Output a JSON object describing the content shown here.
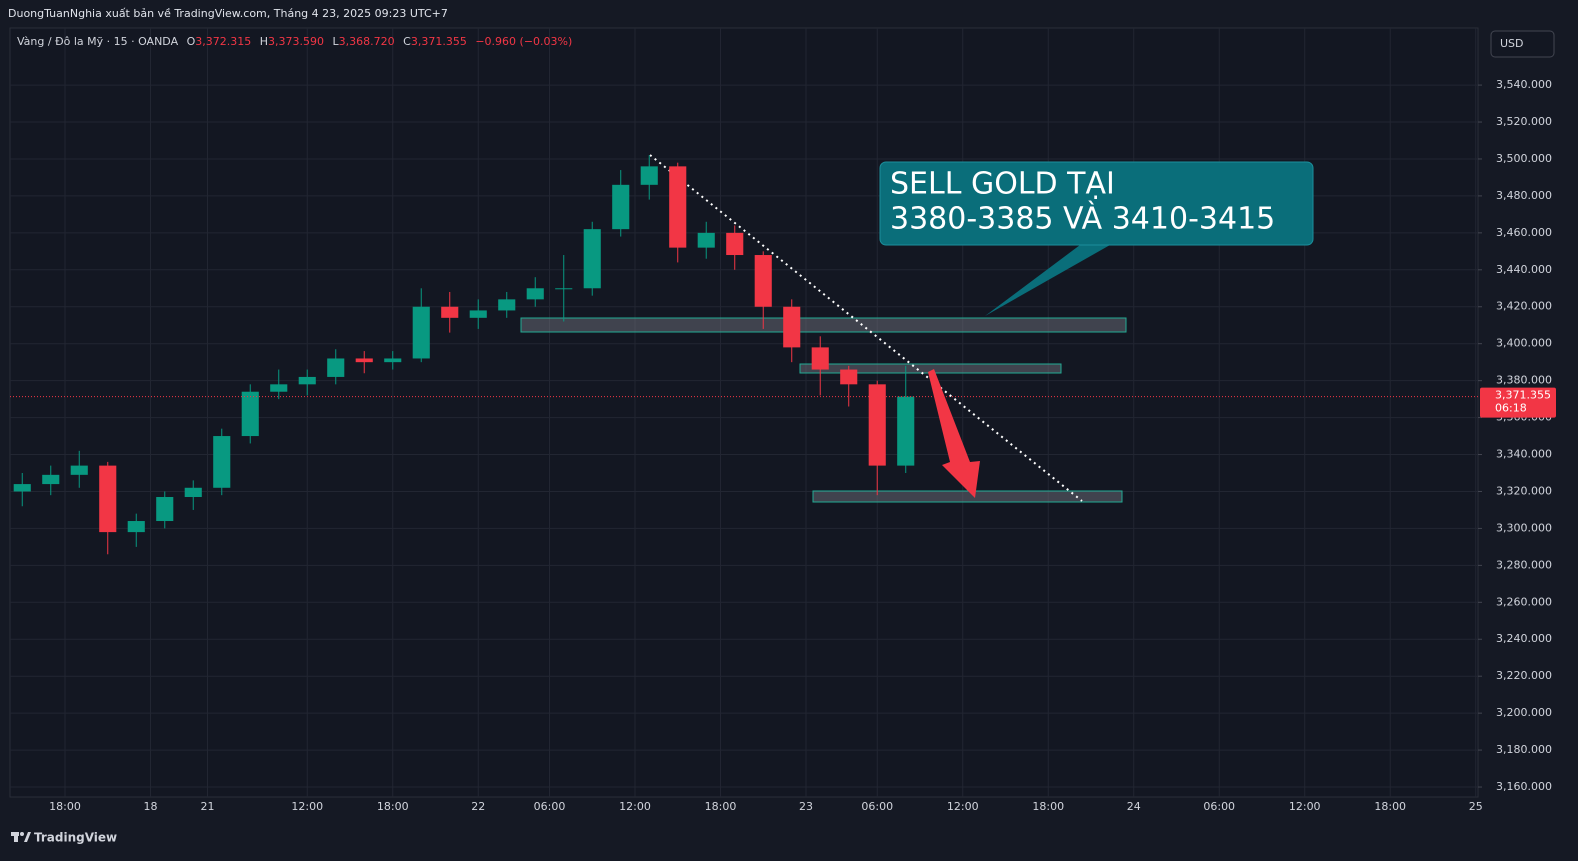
{
  "chart_data": {
    "type": "candlestick",
    "publisher": "DuongTuanNghia xuất bản về TradingView.com, Tháng 4 23, 2025 09:23 UTC+7",
    "legend": {
      "symbol": "Vàng / Đô la Mỹ · 15 · OANDA",
      "o_label": "O",
      "open": "3,372.315",
      "h_label": "H",
      "high": "3,373.590",
      "l_label": "L",
      "low": "3,368.720",
      "c_label": "C",
      "close": "3,371.355",
      "change": "−0.960 (−0.03%)"
    },
    "currency": "USD",
    "countdown": "06:18",
    "annotations": [
      "SELL GOLD TẠI",
      "3380-3385 VÀ 3410-3415"
    ],
    "brand": "TradingView",
    "up_color": "#089981",
    "down_color": "#f23645",
    "grid": true,
    "x": [
      -3,
      -1,
      1,
      3,
      5,
      7,
      9,
      11,
      13,
      15,
      17,
      19,
      21,
      23,
      25,
      27,
      29,
      31,
      33,
      35,
      37,
      39,
      41,
      43,
      45,
      47,
      49,
      51,
      53,
      55,
      57,
      59
    ],
    "open": [
      3320,
      3324,
      3329,
      3334,
      3298,
      3304,
      3317,
      3322,
      3350,
      3374,
      3378,
      3382,
      3392,
      3390,
      3392,
      3420,
      3414,
      3418,
      3424,
      3430,
      3430,
      3462,
      3486,
      3496,
      3452,
      3460,
      3448,
      3420,
      3398,
      3386,
      3378,
      3334
    ],
    "high": [
      3330,
      3334,
      3342,
      3336,
      3308,
      3320,
      3326,
      3354,
      3378,
      3386,
      3386,
      3397,
      3396,
      3396,
      3430,
      3428,
      3424,
      3428,
      3436,
      3448,
      3466,
      3494,
      3502,
      3498,
      3466,
      3464,
      3450,
      3424,
      3404,
      3388,
      3380,
      3388
    ],
    "low": [
      3312,
      3318,
      3322,
      3286,
      3290,
      3300,
      3310,
      3318,
      3346,
      3370,
      3372,
      3378,
      3384,
      3386,
      3390,
      3406,
      3408,
      3414,
      3420,
      3412,
      3426,
      3458,
      3478,
      3444,
      3446,
      3440,
      3408,
      3390,
      3372,
      3366,
      3318,
      3330
    ],
    "close": [
      3324,
      3329,
      3334,
      3298,
      3304,
      3317,
      3322,
      3350,
      3374,
      3378,
      3382,
      3392,
      3390,
      3392,
      3420,
      3414,
      3418,
      3424,
      3430,
      3430,
      3462,
      3486,
      3496,
      3452,
      3460,
      3448,
      3420,
      3398,
      3386,
      3378,
      3334,
      3371.355
    ],
    "xlim": [
      -3.86,
      99.16
    ],
    "xticks": [
      {
        "value": 0,
        "label": "18:00"
      },
      {
        "value": 6,
        "label": "18"
      },
      {
        "value": 10,
        "label": "21"
      },
      {
        "value": 17,
        "label": "12:00"
      },
      {
        "value": 23,
        "label": "18:00"
      },
      {
        "value": 29,
        "label": "22"
      },
      {
        "value": 34,
        "label": "06:00"
      },
      {
        "value": 40,
        "label": "12:00"
      },
      {
        "value": 46,
        "label": "18:00"
      },
      {
        "value": 52,
        "label": "23"
      },
      {
        "value": 57,
        "label": "06:00"
      },
      {
        "value": 63,
        "label": "12:00"
      },
      {
        "value": 69,
        "label": "18:00"
      },
      {
        "value": 75,
        "label": "24"
      },
      {
        "value": 81,
        "label": "06:00"
      },
      {
        "value": 87,
        "label": "12:00"
      },
      {
        "value": 93,
        "label": "18:00"
      },
      {
        "value": 99,
        "label": "25"
      }
    ],
    "ylim": [
      3154.6,
      3570.9
    ],
    "yticks": [
      {
        "value": 3160,
        "label": "3,160.000"
      },
      {
        "value": 3180,
        "label": "3,180.000"
      },
      {
        "value": 3200,
        "label": "3,200.000"
      },
      {
        "value": 3220,
        "label": "3,220.000"
      },
      {
        "value": 3240,
        "label": "3,240.000"
      },
      {
        "value": 3260,
        "label": "3,260.000"
      },
      {
        "value": 3280,
        "label": "3,280.000"
      },
      {
        "value": 3300,
        "label": "3,300.000"
      },
      {
        "value": 3320,
        "label": "3,320.000"
      },
      {
        "value": 3340,
        "label": "3,340.000"
      },
      {
        "value": 3360,
        "label": "3,360.000"
      },
      {
        "value": 3380,
        "label": "3,380.000"
      },
      {
        "value": 3400,
        "label": "3,400.000"
      },
      {
        "value": 3420,
        "label": "3,420.000"
      },
      {
        "value": 3440,
        "label": "3,440.000"
      },
      {
        "value": 3460,
        "label": "3,460.000"
      },
      {
        "value": 3480,
        "label": "3,480.000"
      },
      {
        "value": 3500,
        "label": "3,500.000"
      },
      {
        "value": 3520,
        "label": "3,520.000"
      },
      {
        "value": 3540,
        "label": "3,540.000"
      }
    ]
  }
}
